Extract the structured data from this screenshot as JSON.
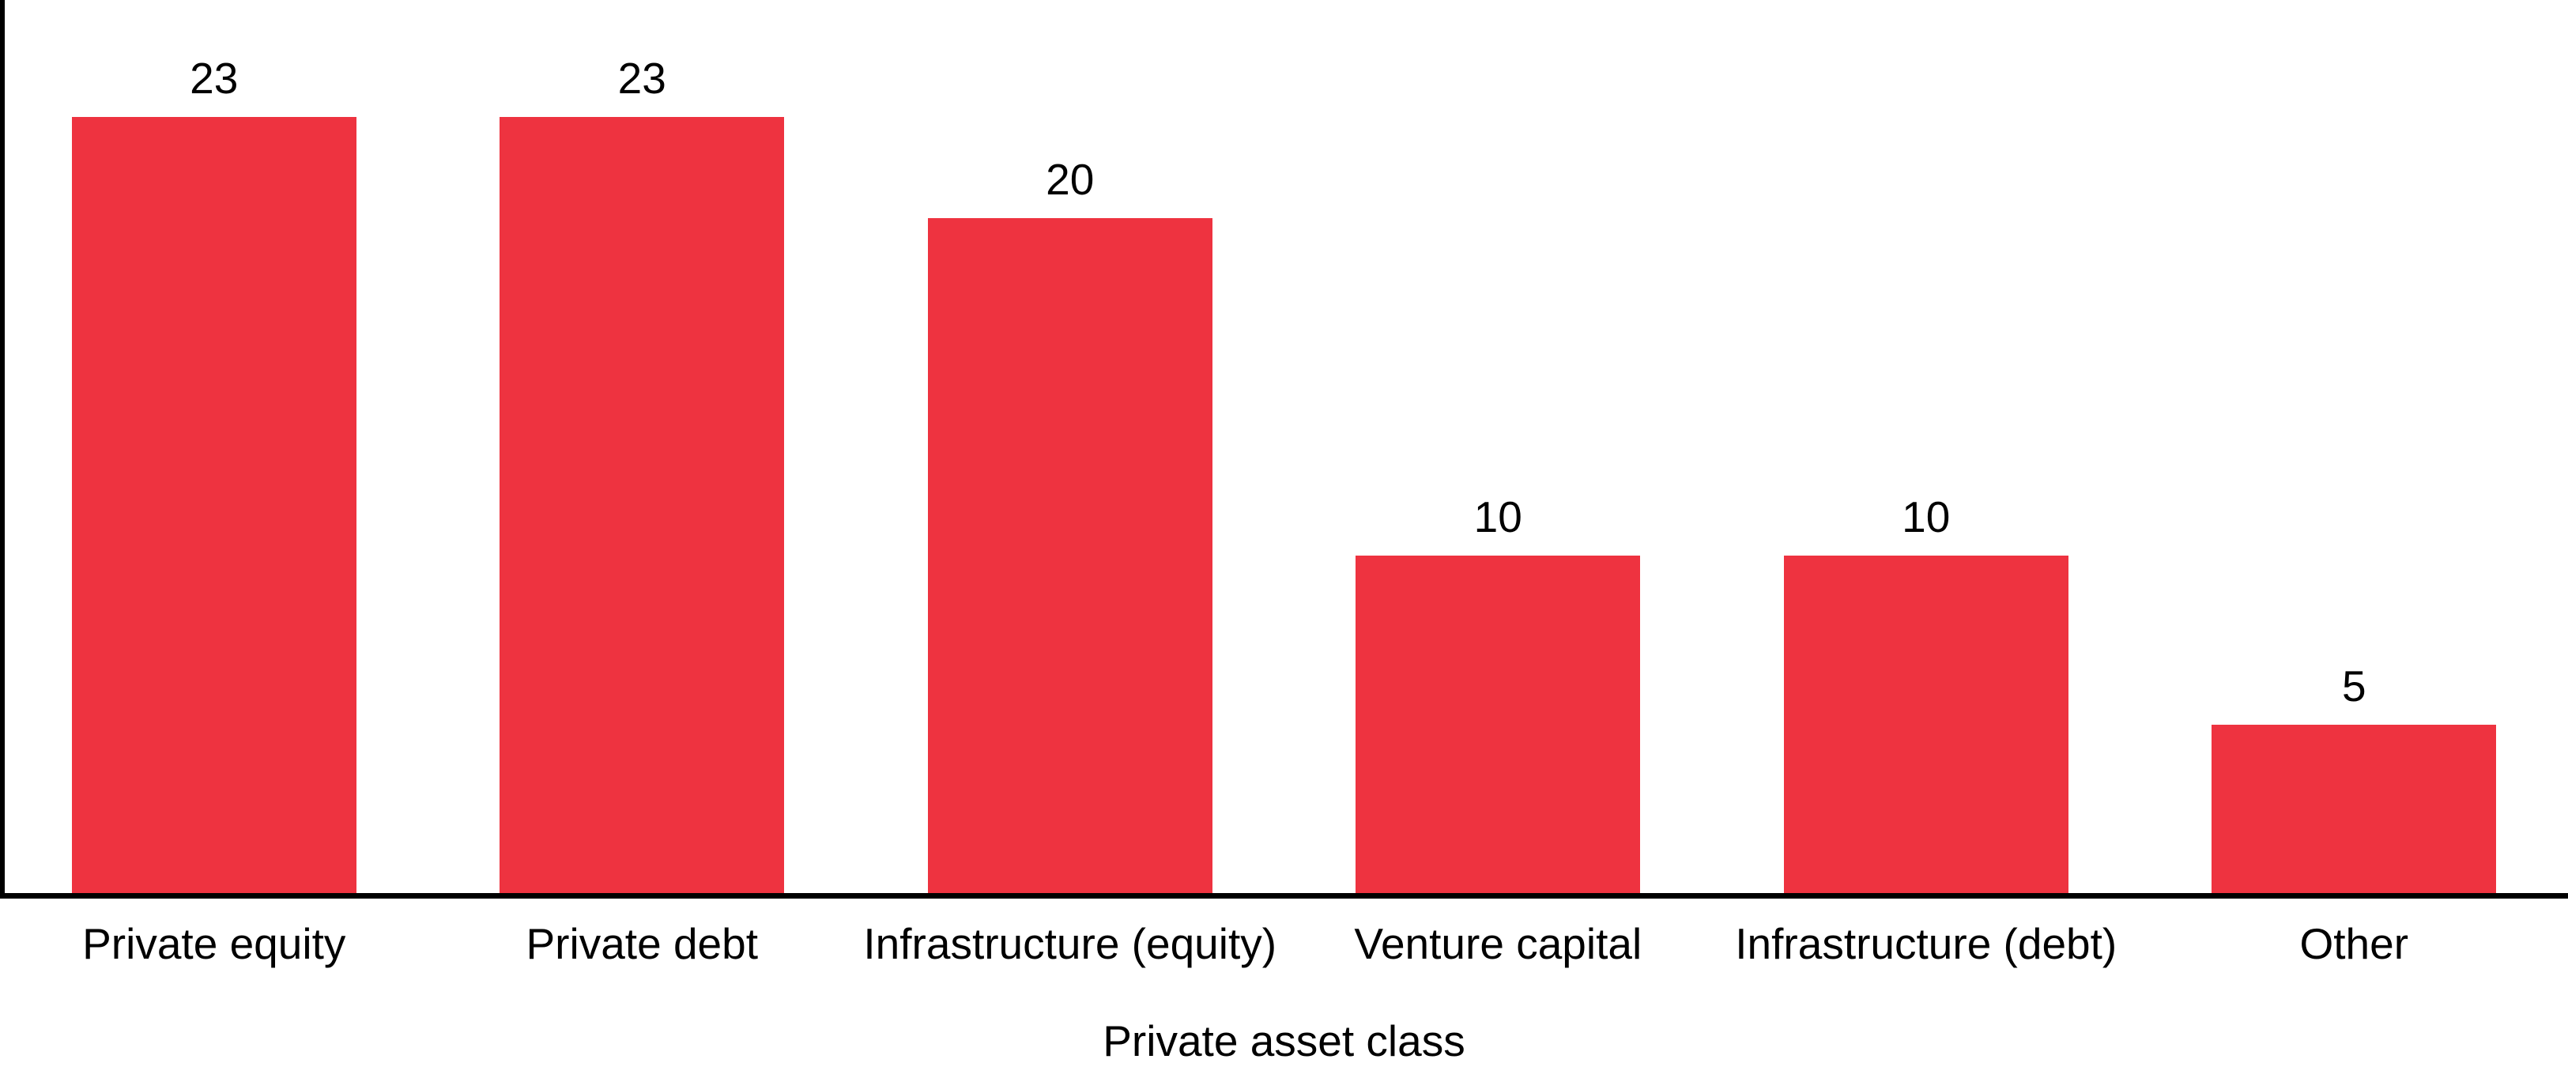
{
  "chart_data": {
    "type": "bar",
    "title": "",
    "categories": [
      "Private equity",
      "Private debt",
      "Infrastructure (equity)",
      "Venture capital",
      "Infrastructure (debt)",
      "Other"
    ],
    "values": [
      23,
      23,
      20,
      10,
      10,
      5
    ],
    "xlabel": "Private asset class",
    "ylabel": "",
    "ylim": [
      0,
      26.5
    ],
    "grid": false,
    "legend": false,
    "value_labels_shown": true,
    "bar_color": "#ee3340",
    "axis_color": "#000000",
    "text_color": "#000000",
    "background_color": "#ffffff"
  }
}
